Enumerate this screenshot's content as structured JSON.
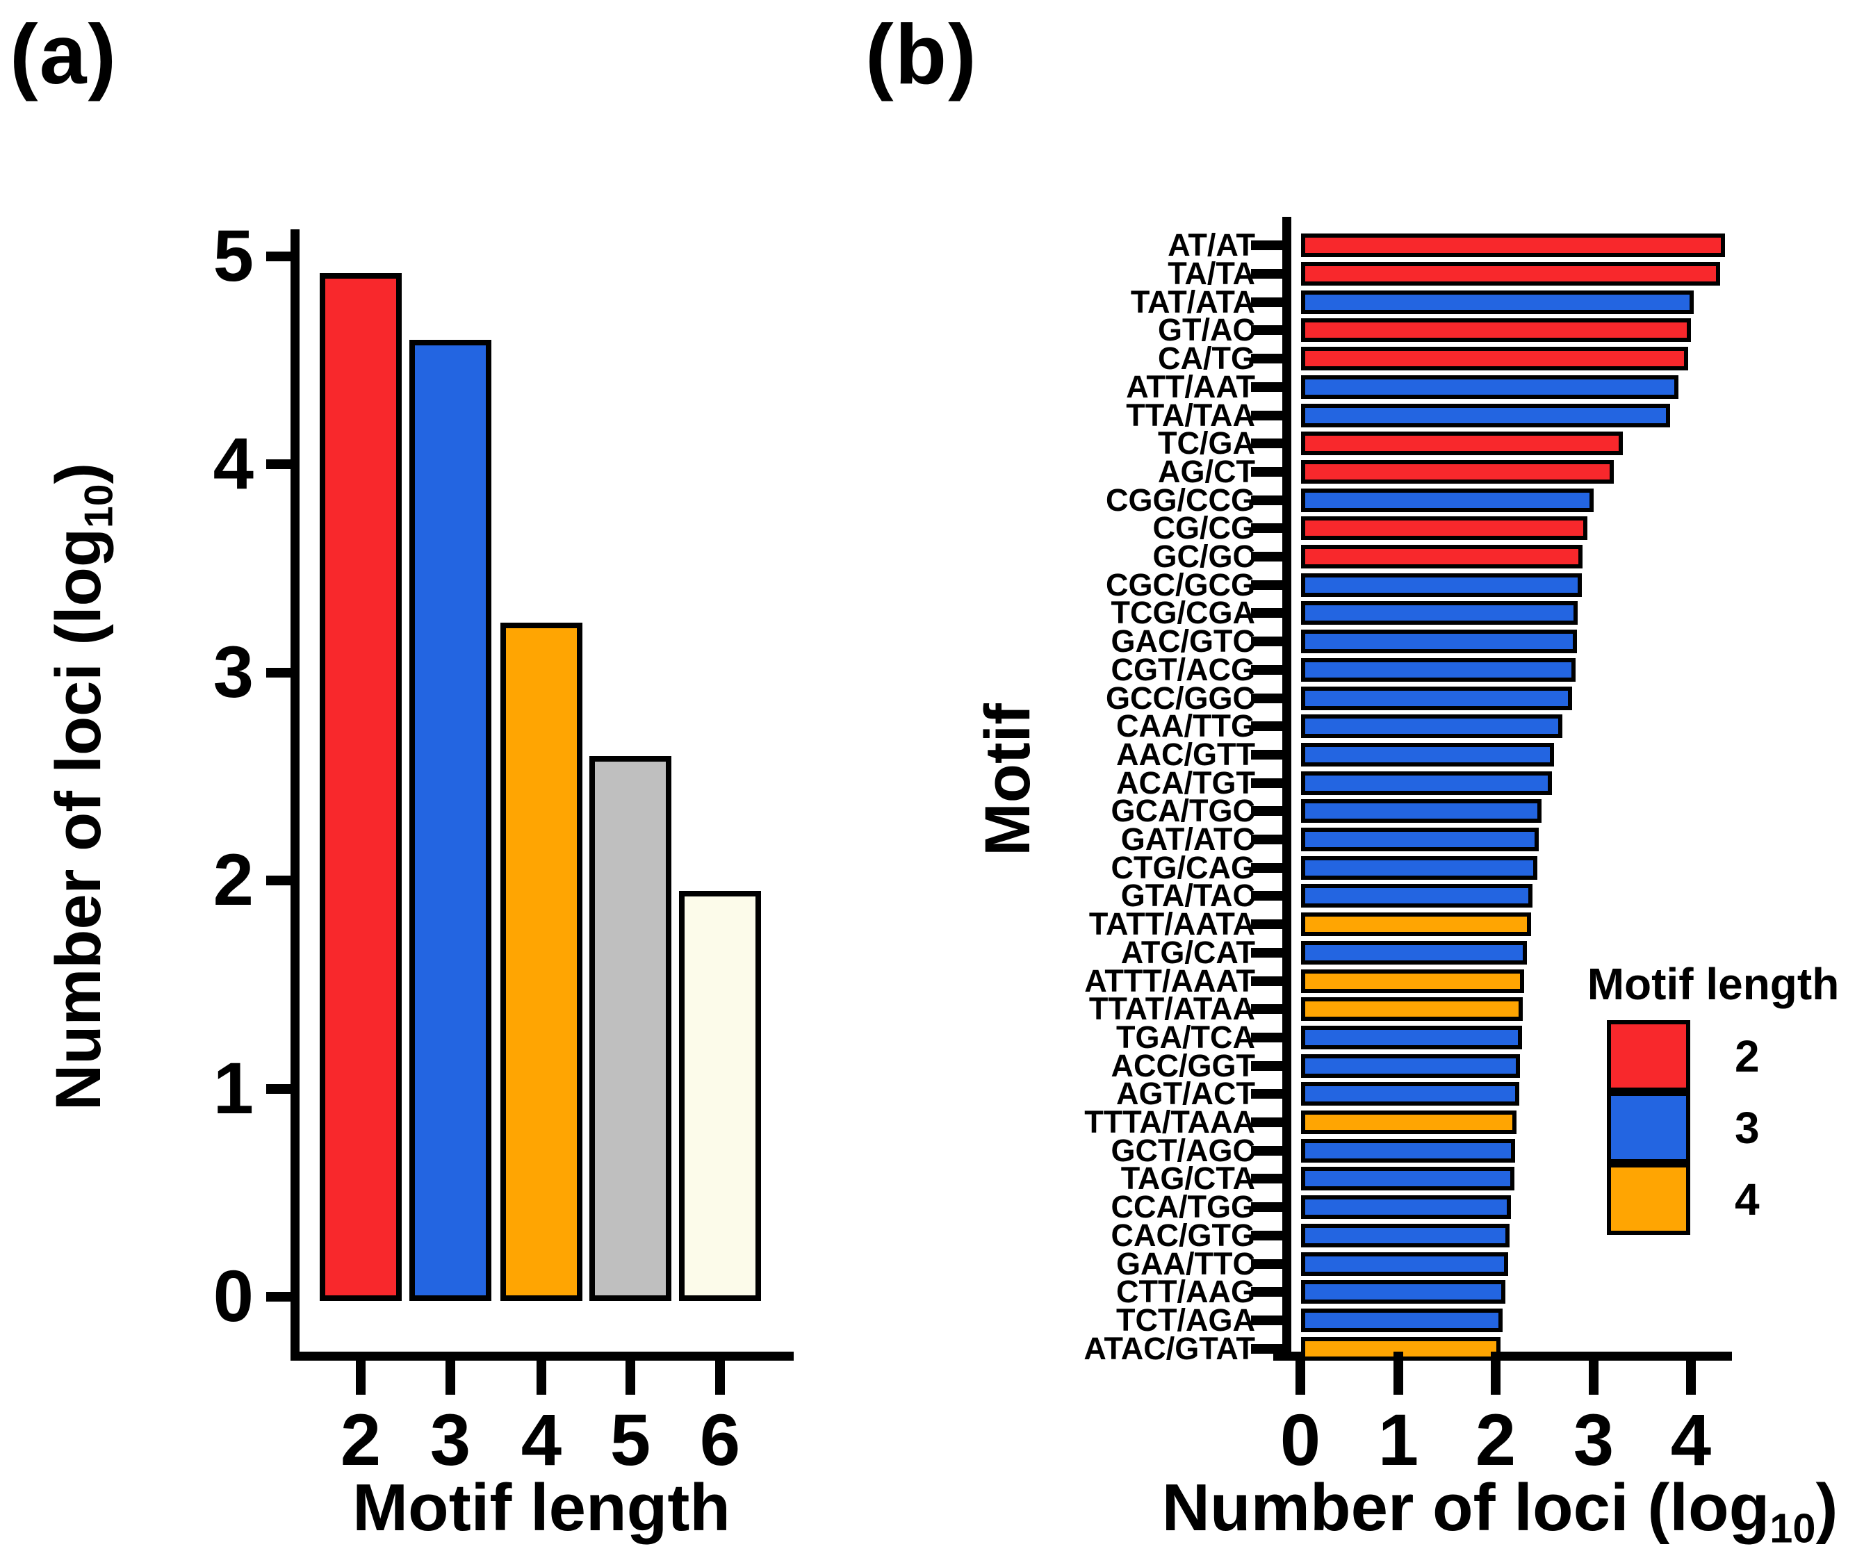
{
  "figure": {
    "panel_a_label": "(a)",
    "panel_b_label": "(b)"
  },
  "colors": {
    "length2_red": "#F8282C",
    "length3_blue": "#2365E1",
    "length4_orange": "#FFA502",
    "length5_gray": "#BFBFBF",
    "length6_ivory": "#FCFBEA",
    "axis_black": "#000000"
  },
  "chart_data": [
    {
      "id": "a",
      "type": "bar",
      "title": "",
      "xlabel": "Motif length",
      "ylabel_prefix": "Number of loci (log",
      "ylabel_sub": "10",
      "ylabel_suffix": ")",
      "categories": [
        "2",
        "3",
        "4",
        "5",
        "6"
      ],
      "values": [
        4.94,
        4.62,
        3.26,
        2.62,
        1.97
      ],
      "bar_color_keys": [
        "length2_red",
        "length3_blue",
        "length4_orange",
        "length5_gray",
        "length6_ivory"
      ],
      "yticks": [
        "0",
        "1",
        "2",
        "3",
        "4",
        "5"
      ],
      "ylim": [
        0,
        5.2
      ],
      "grid": false
    },
    {
      "id": "b",
      "type": "bar-horizontal",
      "title": "",
      "xlabel_prefix": "Number of loci (log",
      "xlabel_sub": "10",
      "xlabel_suffix": ")",
      "ylabel": "Motif",
      "categories": [
        "AT/AT",
        "TA/TA",
        "TAT/ATA",
        "GT/AC",
        "CA/TG",
        "ATT/AAT",
        "TTA/TAA",
        "TC/GA",
        "AG/CT",
        "CGG/CCG",
        "CG/CG",
        "GC/GC",
        "CGC/GCG",
        "TCG/CGA",
        "GAC/GTC",
        "CGT/ACG",
        "GCC/GGC",
        "CAA/TTG",
        "AAC/GTT",
        "ACA/TGT",
        "GCA/TGC",
        "GAT/ATC",
        "CTG/CAG",
        "GTA/TAC",
        "TATT/AATA",
        "ATG/CAT",
        "ATTT/AAAT",
        "TTAT/ATAA",
        "TGA/TCA",
        "ACC/GGT",
        "AGT/ACT",
        "TTTA/TAAA",
        "GCT/AGC",
        "TAG/CTA",
        "CCA/TGG",
        "CAC/GTG",
        "GAA/TTC",
        "CTT/AAG",
        "TCT/AGA",
        "ATAC/GTAT"
      ],
      "values": [
        4.35,
        4.3,
        4.03,
        4.0,
        3.97,
        3.87,
        3.79,
        3.3,
        3.21,
        3.0,
        2.94,
        2.89,
        2.88,
        2.84,
        2.83,
        2.82,
        2.78,
        2.68,
        2.6,
        2.58,
        2.47,
        2.44,
        2.43,
        2.38,
        2.36,
        2.32,
        2.29,
        2.28,
        2.27,
        2.25,
        2.24,
        2.21,
        2.2,
        2.19,
        2.16,
        2.14,
        2.13,
        2.1,
        2.07,
        2.05
      ],
      "motif_lengths": [
        2,
        2,
        3,
        2,
        2,
        3,
        3,
        2,
        2,
        3,
        2,
        2,
        3,
        3,
        3,
        3,
        3,
        3,
        3,
        3,
        3,
        3,
        3,
        3,
        4,
        3,
        4,
        4,
        3,
        3,
        3,
        4,
        3,
        3,
        3,
        3,
        3,
        3,
        3,
        4
      ],
      "xticks": [
        "0",
        "1",
        "2",
        "3",
        "4"
      ],
      "xlim": [
        0,
        4.4
      ],
      "grid": false,
      "legend": {
        "title": "Motif length",
        "position": "lower right",
        "entries": [
          {
            "label": "2",
            "color_key": "length2_red"
          },
          {
            "label": "3",
            "color_key": "length3_blue"
          },
          {
            "label": "4",
            "color_key": "length4_orange"
          }
        ]
      }
    }
  ]
}
